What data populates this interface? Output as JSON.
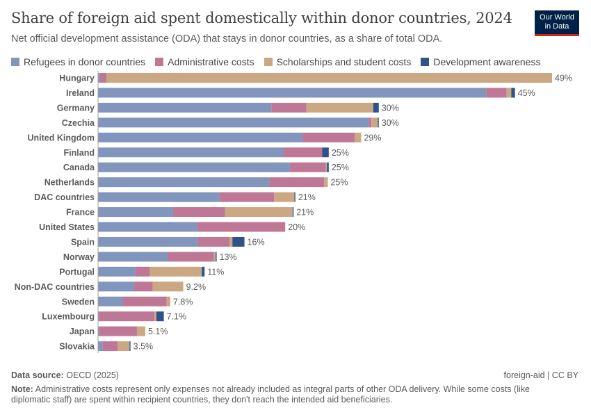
{
  "header": {
    "title": "Share of foreign aid spent domestically within donor countries, 2024",
    "subtitle": "Net official development assistance (ODA) that stays in donor countries, as a share of total ODA."
  },
  "logo": {
    "line1": "Our World",
    "line2": "in Data"
  },
  "footer": {
    "source_label": "Data source:",
    "source_value": "OECD (2025)",
    "right_text": "foreign-aid | CC BY",
    "note_label": "Note:",
    "note_text": "Administrative costs represent only expenses not already included as integral parts of other ODA delivery. While some costs (like diplomatic staff) are spent within recipient countries, they don't reach the intended aid beneficiaries."
  },
  "colors": {
    "refugees": "#8295bd",
    "admin": "#bf7796",
    "scholarships": "#cba883",
    "awareness": "#2f5388",
    "axis": "#a0a0a0"
  },
  "chart_data": {
    "type": "bar",
    "orientation": "horizontal",
    "stacked": true,
    "unit": "%",
    "xlim": [
      0,
      49
    ],
    "categories": [
      "Hungary",
      "Ireland",
      "Germany",
      "Czechia",
      "United Kingdom",
      "Finland",
      "Canada",
      "Netherlands",
      "DAC countries",
      "France",
      "United States",
      "Spain",
      "Norway",
      "Portugal",
      "Non-DAC countries",
      "Sweden",
      "Luxembourg",
      "Japan",
      "Slovakia"
    ],
    "totals": [
      "49%",
      "45%",
      "30%",
      "30%",
      "29%",
      "25%",
      "25%",
      "25%",
      "21%",
      "21%",
      "20%",
      "16%",
      "13%",
      "11%",
      "9.2%",
      "7.8%",
      "7.1%",
      "5.1%",
      "3.5%"
    ],
    "legend_position": "top",
    "series": [
      {
        "name": "Refugees in donor countries",
        "color_key": "refugees",
        "values": [
          0.2,
          41.9,
          18.7,
          29.2,
          22.1,
          20.0,
          20.7,
          18.5,
          13.1,
          8.1,
          10.7,
          10.8,
          7.5,
          4.0,
          3.9,
          2.7,
          0.1,
          0.1,
          0.5
        ]
      },
      {
        "name": "Administrative costs",
        "color_key": "admin",
        "values": [
          0.7,
          2.2,
          3.8,
          0.3,
          5.6,
          4.2,
          3.9,
          5.9,
          5.9,
          5.6,
          9.5,
          3.4,
          5.0,
          1.6,
          2.0,
          4.7,
          6.0,
          4.1,
          1.6
        ]
      },
      {
        "name": "Scholarships and student costs",
        "color_key": "scholarships",
        "values": [
          48.1,
          0.5,
          7.2,
          0.7,
          0.7,
          0.0,
          0.1,
          0.4,
          2.2,
          7.3,
          0.0,
          0.3,
          0.2,
          5.6,
          3.3,
          0.4,
          0.2,
          0.9,
          1.3
        ]
      },
      {
        "name": "Development awareness",
        "color_key": "awareness",
        "values": [
          0.0,
          0.4,
          0.6,
          0.1,
          0.0,
          0.7,
          0.2,
          0.0,
          0.1,
          0.1,
          0.0,
          1.3,
          0.1,
          0.3,
          0.0,
          0.0,
          0.8,
          0.0,
          0.1
        ]
      }
    ]
  }
}
